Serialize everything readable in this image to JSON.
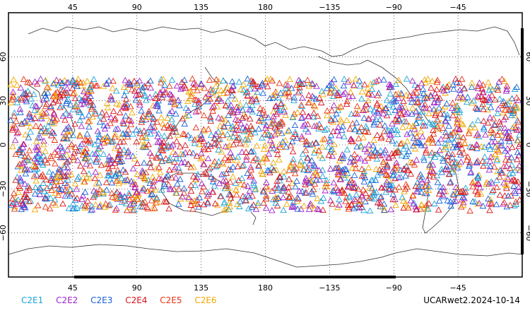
{
  "map": {
    "lon_tick_labels": [
      "45",
      "90",
      "135",
      "180",
      "−135",
      "−90",
      "−45"
    ],
    "lat_tick_labels_left": [
      "60",
      "30",
      "0",
      "−30",
      "−60"
    ],
    "lat_tick_labels_right": [
      "60",
      "30",
      "0",
      "−30",
      "−60"
    ],
    "lon_range": [
      0,
      360
    ],
    "lat_range": [
      -90,
      90
    ],
    "occultation_band_lat": [
      -45,
      45
    ],
    "marker": "open-triangle",
    "grid": "dotted"
  },
  "legend": [
    {
      "label": "C2E1",
      "color": "#1aa3d9"
    },
    {
      "label": "C2E2",
      "color": "#a020c8"
    },
    {
      "label": "C2E3",
      "color": "#1560d8"
    },
    {
      "label": "C2E4",
      "color": "#d8141c"
    },
    {
      "label": "C2E5",
      "color": "#e83010"
    },
    {
      "label": "C2E6",
      "color": "#f0a800"
    }
  ],
  "stamp": "UCARwet2.2024-10-14"
}
